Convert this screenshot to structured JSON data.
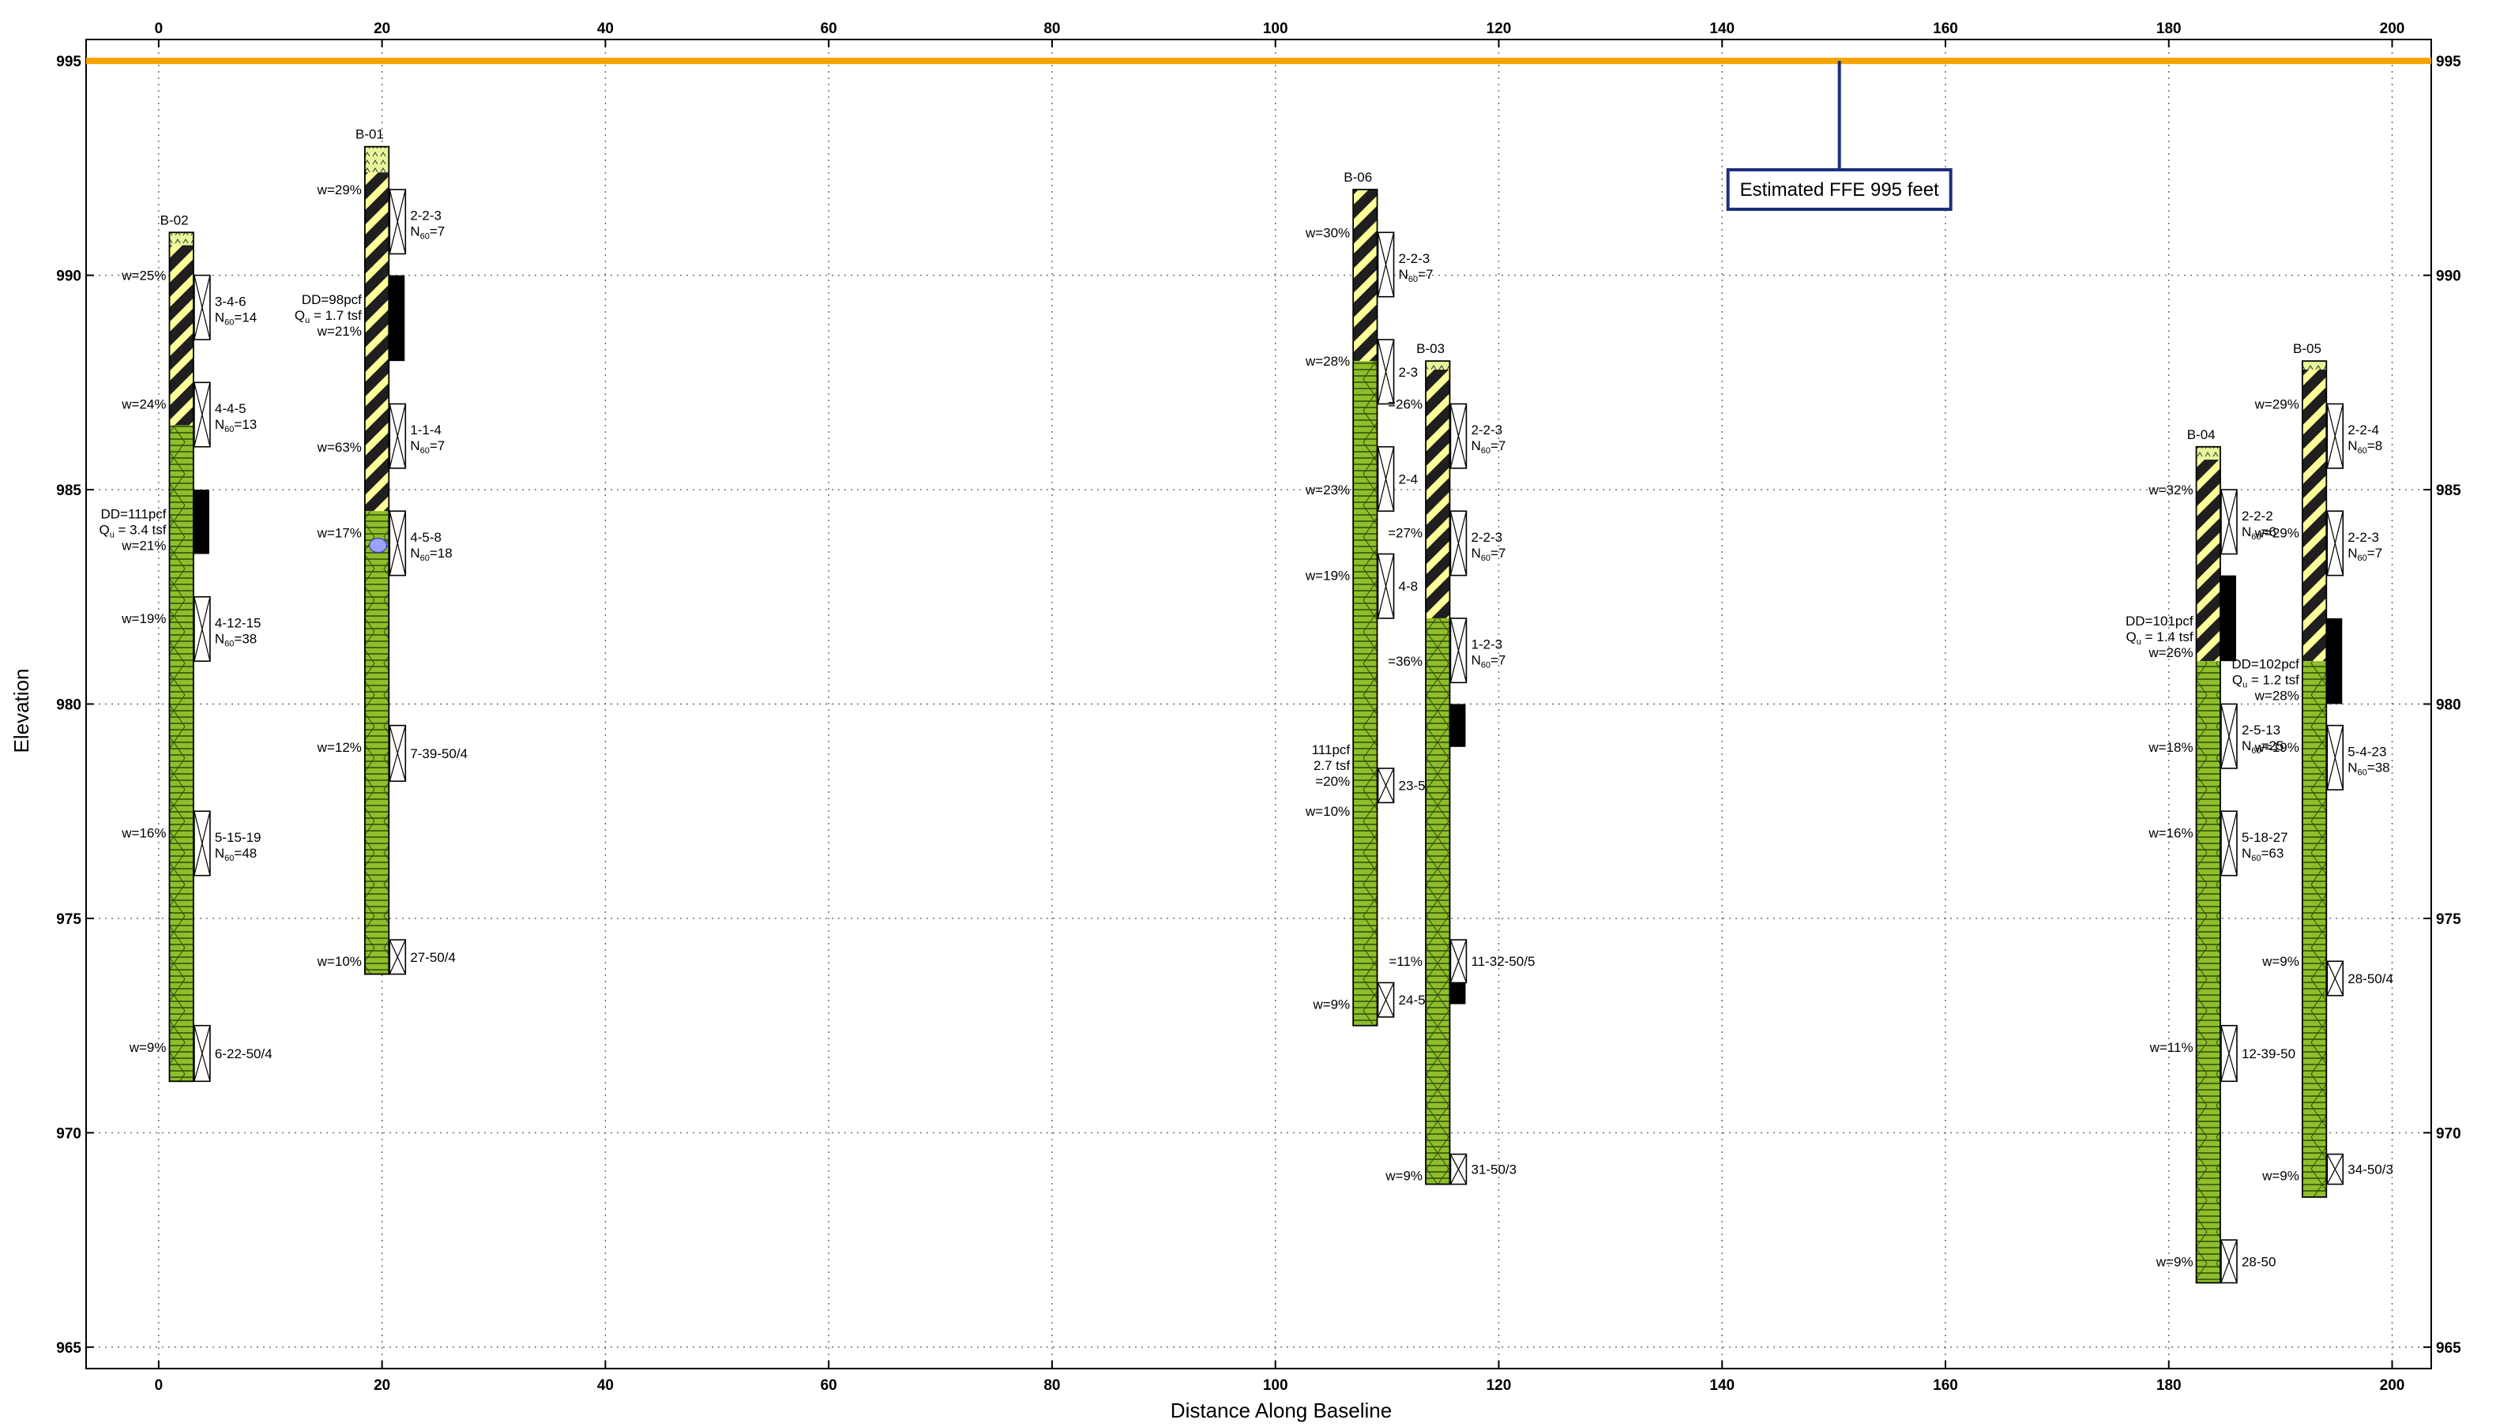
{
  "chart_data": {
    "type": "geotechnical-boring-cross-section",
    "xlabel": "Distance Along Baseline",
    "ylabel": "Elevation",
    "xlim": [
      -6.5,
      203.5
    ],
    "ylim": [
      964.5,
      995.5
    ],
    "xticks": [
      0,
      20,
      40,
      60,
      80,
      100,
      120,
      140,
      160,
      180,
      200
    ],
    "yticks": [
      965,
      970,
      975,
      980,
      985,
      990,
      995
    ],
    "grid": "dotted",
    "ffe_line": {
      "elevation": 995,
      "color": "#f5a300",
      "label": "Estimated FFE 995 feet",
      "leader_x": 150.5
    },
    "colors": {
      "clay": "#1f1f1f",
      "clay_stripe": "#ffff99",
      "glacial": "#8fbe2a",
      "topsoil": "#e6f79a",
      "leader": "#1c2f7c"
    },
    "borings": [
      {
        "id": "B-02",
        "x": 1.5,
        "top": 991.0,
        "bottom": 971.2,
        "layers": [
          {
            "type": "topsoil",
            "top": 991.0,
            "bottom": 990.7
          },
          {
            "type": "clay",
            "top": 990.7,
            "bottom": 986.5
          },
          {
            "type": "glacial",
            "top": 986.5,
            "bottom": 971.2
          }
        ],
        "samples": [
          {
            "top": 990.0,
            "bottom": 988.5,
            "blows": "3-4-6",
            "n60": "14"
          },
          {
            "top": 987.5,
            "bottom": 986.0,
            "blows": "4-4-5",
            "n60": "13"
          },
          {
            "top": 982.5,
            "bottom": 981.0,
            "blows": "4-12-15",
            "n60": "38"
          },
          {
            "top": 977.5,
            "bottom": 976.0,
            "blows": "5-15-19",
            "n60": "48"
          },
          {
            "top": 972.5,
            "bottom": 971.2,
            "blows": "6-22-50/4",
            "n60": ""
          }
        ],
        "moisture": [
          {
            "elev": 990.0,
            "text": "w=25%"
          },
          {
            "elev": 987.0,
            "text": "w=24%"
          },
          {
            "elev": 982.0,
            "text": "w=19%"
          },
          {
            "elev": 977.0,
            "text": "w=16%"
          },
          {
            "elev": 972.0,
            "text": "w=9%"
          }
        ],
        "shelby": [
          {
            "top": 985.0,
            "bottom": 983.5
          }
        ],
        "lab": {
          "elev": 984.0,
          "lines": [
            "DD=111pcf",
            "Qu = 3.4 tsf",
            "w=21%"
          ]
        }
      },
      {
        "id": "B-01",
        "x": 19.0,
        "top": 993.0,
        "bottom": 973.7,
        "layers": [
          {
            "type": "topsoil",
            "top": 993.0,
            "bottom": 992.4
          },
          {
            "type": "clay",
            "top": 992.4,
            "bottom": 984.5
          },
          {
            "type": "glacial",
            "top": 984.5,
            "bottom": 973.7
          }
        ],
        "samples": [
          {
            "top": 992.0,
            "bottom": 990.5,
            "blows": "2-2-3",
            "n60": "7"
          },
          {
            "top": 987.0,
            "bottom": 985.5,
            "blows": "1-1-4",
            "n60": "7"
          },
          {
            "top": 984.5,
            "bottom": 983.0,
            "blows": "4-5-8",
            "n60": "18"
          },
          {
            "top": 979.5,
            "bottom": 978.2,
            "blows": "7-39-50/4",
            "n60": ""
          },
          {
            "top": 974.5,
            "bottom": 973.7,
            "blows": "27-50/4",
            "n60": ""
          }
        ],
        "moisture": [
          {
            "elev": 992.0,
            "text": "w=29%"
          },
          {
            "elev": 986.0,
            "text": "w=63%"
          },
          {
            "elev": 984.0,
            "text": "w=17%"
          },
          {
            "elev": 979.0,
            "text": "w=12%"
          },
          {
            "elev": 974.0,
            "text": "w=10%"
          }
        ],
        "shelby": [
          {
            "top": 990.0,
            "bottom": 988.0
          }
        ],
        "lab": {
          "elev": 989.0,
          "lines": [
            "DD=98pcf",
            "Qu = 1.7 tsf",
            "w=21%"
          ]
        },
        "water_symbol_elev": 983.7
      },
      {
        "id": "B-06",
        "x": 107.5,
        "top": 992.0,
        "bottom": 972.5,
        "layers": [
          {
            "type": "clay",
            "top": 992.0,
            "bottom": 988.0
          },
          {
            "type": "glacial",
            "top": 988.0,
            "bottom": 972.5
          }
        ],
        "samples": [
          {
            "top": 991.0,
            "bottom": 989.5,
            "blows": "2-2-3",
            "n60": "7"
          },
          {
            "top": 988.5,
            "bottom": 987.0,
            "blows": "2-3",
            "n60": ""
          },
          {
            "top": 986.0,
            "bottom": 984.5,
            "blows": "2-4",
            "n60": ""
          },
          {
            "top": 983.5,
            "bottom": 982.0,
            "blows": "4-8",
            "n60": ""
          },
          {
            "top": 978.5,
            "bottom": 977.7,
            "blows": "23-50/4",
            "n60": ""
          },
          {
            "top": 973.5,
            "bottom": 972.7,
            "blows": "24-50/3",
            "n60": ""
          }
        ],
        "moisture": [
          {
            "elev": 991.0,
            "text": "w=30%"
          },
          {
            "elev": 988.0,
            "text": "w=28%"
          },
          {
            "elev": 985.0,
            "text": "w=23%"
          },
          {
            "elev": 983.0,
            "text": "w=19%"
          },
          {
            "elev": 977.5,
            "text": "w=10%"
          },
          {
            "elev": 973.0,
            "text": "w=9%"
          }
        ],
        "lab": {
          "elev": 978.5,
          "lines": [
            "111pcf",
            "2.7 tsf",
            "=20%"
          ]
        }
      },
      {
        "id": "B-03",
        "x": 114.0,
        "top": 988.0,
        "bottom": 968.8,
        "layers": [
          {
            "type": "topsoil",
            "top": 988.0,
            "bottom": 987.8
          },
          {
            "type": "clay",
            "top": 987.8,
            "bottom": 982.0
          },
          {
            "type": "glacial",
            "top": 982.0,
            "bottom": 968.8
          }
        ],
        "samples": [
          {
            "top": 987.0,
            "bottom": 985.5,
            "blows": "2-2-3",
            "n60": "7"
          },
          {
            "top": 984.5,
            "bottom": 983.0,
            "blows": "2-2-3",
            "n60": "7"
          },
          {
            "top": 982.0,
            "bottom": 980.5,
            "blows": "1-2-3",
            "n60": "7"
          },
          {
            "top": 974.5,
            "bottom": 973.5,
            "blows": "11-32-50/5",
            "n60": ""
          },
          {
            "top": 969.5,
            "bottom": 968.8,
            "blows": "31-50/3",
            "n60": ""
          }
        ],
        "moisture": [
          {
            "elev": 987.0,
            "text": "=26%"
          },
          {
            "elev": 984.0,
            "text": "=27%"
          },
          {
            "elev": 981.0,
            "text": "=36%"
          },
          {
            "elev": 974.0,
            "text": "=11%"
          },
          {
            "elev": 969.0,
            "text": "w=9%"
          }
        ],
        "shelby": [
          {
            "top": 980.0,
            "bottom": 979.0
          },
          {
            "top": 974.0,
            "bottom": 973.0
          }
        ]
      },
      {
        "id": "B-04",
        "x": 183.0,
        "top": 986.0,
        "bottom": 966.5,
        "layers": [
          {
            "type": "topsoil",
            "top": 986.0,
            "bottom": 985.7
          },
          {
            "type": "clay",
            "top": 985.7,
            "bottom": 981.0
          },
          {
            "type": "glacial",
            "top": 981.0,
            "bottom": 966.5
          }
        ],
        "samples": [
          {
            "top": 985.0,
            "bottom": 983.5,
            "blows": "2-2-2",
            "n60": "6"
          },
          {
            "top": 980.0,
            "bottom": 978.5,
            "blows": "2-5-13",
            "n60": "25"
          },
          {
            "top": 977.5,
            "bottom": 976.0,
            "blows": "5-18-27",
            "n60": "63"
          },
          {
            "top": 972.5,
            "bottom": 971.2,
            "blows": "12-39-50",
            "n60": ""
          },
          {
            "top": 967.5,
            "bottom": 966.5,
            "blows": "28-50",
            "n60": ""
          }
        ],
        "moisture": [
          {
            "elev": 985.0,
            "text": "w=32%"
          },
          {
            "elev": 979.0,
            "text": "w=18%"
          },
          {
            "elev": 977.0,
            "text": "w=16%"
          },
          {
            "elev": 972.0,
            "text": "w=11%"
          },
          {
            "elev": 967.0,
            "text": "w=9%"
          }
        ],
        "shelby": [
          {
            "top": 983.0,
            "bottom": 981.0
          }
        ],
        "lab": {
          "elev": 981.5,
          "lines": [
            "DD=101pcf",
            "Qu = 1.4 tsf",
            "w=26%"
          ]
        }
      },
      {
        "id": "B-05",
        "x": 192.5,
        "top": 988.0,
        "bottom": 968.5,
        "layers": [
          {
            "type": "topsoil",
            "top": 988.0,
            "bottom": 987.8
          },
          {
            "type": "clay",
            "top": 987.8,
            "bottom": 981.0
          },
          {
            "type": "glacial",
            "top": 981.0,
            "bottom": 968.5
          }
        ],
        "samples": [
          {
            "top": 987.0,
            "bottom": 985.5,
            "blows": "2-2-4",
            "n60": "8"
          },
          {
            "top": 984.5,
            "bottom": 983.0,
            "blows": "2-2-3",
            "n60": "7"
          },
          {
            "top": 979.5,
            "bottom": 978.0,
            "blows": "5-4-23",
            "n60": "38"
          },
          {
            "top": 974.0,
            "bottom": 973.2,
            "blows": "28-50/4",
            "n60": ""
          },
          {
            "top": 969.5,
            "bottom": 968.8,
            "blows": "34-50/3",
            "n60": ""
          }
        ],
        "moisture": [
          {
            "elev": 987.0,
            "text": "w=29%"
          },
          {
            "elev": 984.0,
            "text": "w=29%"
          },
          {
            "elev": 979.0,
            "text": "w=19%"
          },
          {
            "elev": 974.0,
            "text": "w=9%"
          },
          {
            "elev": 969.0,
            "text": "w=9%"
          }
        ],
        "shelby": [
          {
            "top": 982.0,
            "bottom": 980.0
          }
        ],
        "lab": {
          "elev": 980.5,
          "lines": [
            "DD=102pcf",
            "Qu = 1.2 tsf",
            "w=28%"
          ]
        }
      }
    ]
  }
}
